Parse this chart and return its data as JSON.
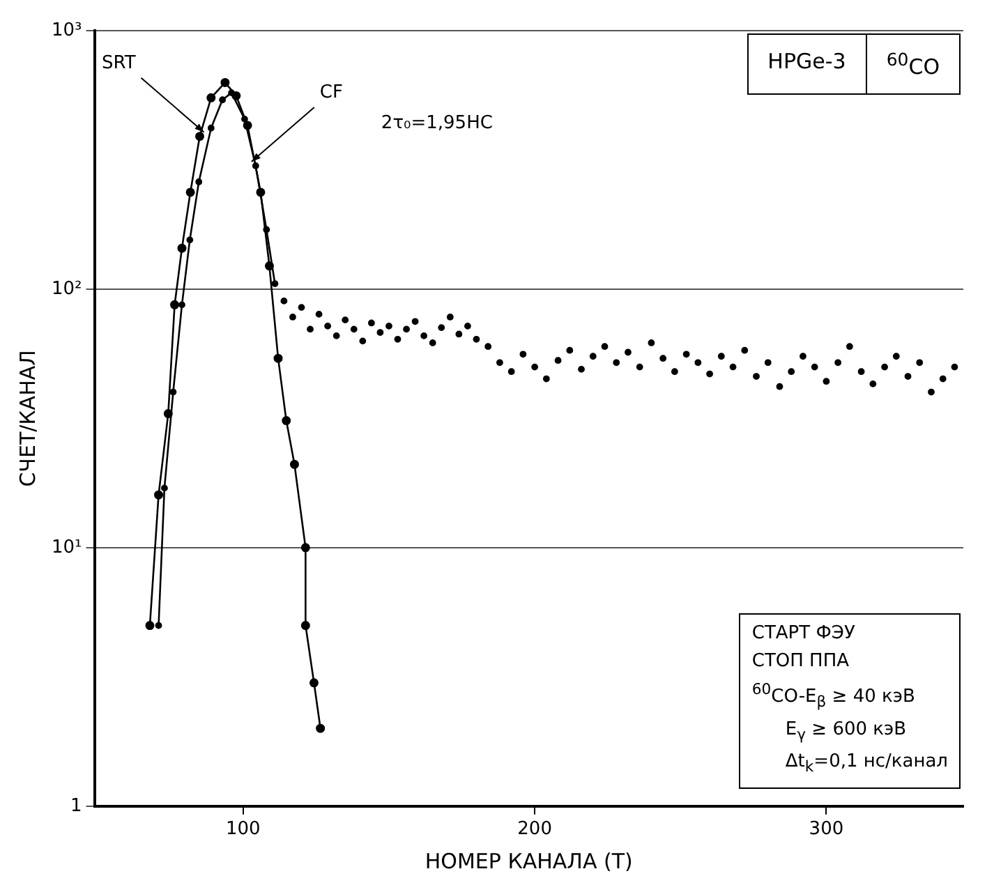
{
  "chart_data": {
    "type": "line",
    "xlabel": "НОМЕР КАНАЛА (Т)",
    "ylabel": "СЧЕТ/КАНАЛ",
    "xlim": [
      49,
      347
    ],
    "xticks": [
      100,
      200,
      300
    ],
    "ylim": [
      1,
      1000
    ],
    "yticks": [
      1,
      {
        "value": 10,
        "label": "10¹"
      },
      {
        "value": 100,
        "label": "10²"
      },
      {
        "value": 1000,
        "label": "10³"
      }
    ],
    "log": "y",
    "grid": "y",
    "marker": "circle",
    "line_style": "solid",
    "series": [
      {
        "name": "SRT",
        "color": "#000000",
        "x": [
          68,
          71,
          74.3,
          76.5,
          79,
          81.9,
          85.1,
          89,
          93.8,
          97.6,
          101.5,
          106,
          109,
          112,
          114.8,
          117.6,
          121.4,
          121.4,
          124.3,
          126.5
        ],
        "values": [
          5,
          16,
          33,
          87,
          144,
          237,
          390,
          550,
          630,
          560,
          430,
          237,
          123,
          54,
          31,
          21,
          10,
          5,
          3,
          2
        ]
      },
      {
        "name": "CF",
        "color": "#000000",
        "x": [
          71,
          73,
          76,
          79,
          81.7,
          84.8,
          89,
          92.9,
          96,
          100.5,
          104.3,
          108,
          110.9
        ],
        "values": [
          5,
          17,
          40,
          87,
          155,
          260,
          420,
          540,
          575,
          455,
          300,
          170,
          105
        ]
      },
      {
        "type": "scatter",
        "color": "#000000",
        "x": [
          114,
          117,
          120,
          123,
          126,
          129,
          132,
          135,
          138,
          141,
          144,
          147,
          150,
          153,
          156,
          159,
          162,
          165,
          168,
          171,
          174,
          177,
          180,
          184,
          188,
          192,
          196,
          200,
          204,
          208,
          212,
          216,
          220,
          224,
          228,
          232,
          236,
          240,
          244,
          248,
          252,
          256,
          260,
          264,
          268,
          272,
          276,
          280,
          284,
          288,
          292,
          296,
          300,
          304,
          308,
          312,
          316,
          320,
          324,
          328,
          332,
          336,
          340,
          344
        ],
        "values": [
          90,
          78,
          85,
          70,
          80,
          72,
          66,
          76,
          70,
          63,
          74,
          68,
          72,
          64,
          70,
          75,
          66,
          62,
          71,
          78,
          67,
          72,
          64,
          60,
          52,
          48,
          56,
          50,
          45,
          53,
          58,
          49,
          55,
          60,
          52,
          57,
          50,
          62,
          54,
          48,
          56,
          52,
          47,
          55,
          50,
          58,
          46,
          52,
          42,
          48,
          55,
          50,
          44,
          52,
          60,
          48,
          43,
          50,
          55,
          46,
          52,
          40,
          45,
          50
        ]
      }
    ],
    "annotations": [
      "2τ₀=1,95НС",
      "HPGe-3",
      "$^{60}$CO",
      "СТАРТ ФЭУ",
      "СТОП ППА",
      "$^{60}$CO-E$_{β}$ ≥ 40 кэВ",
      "E$_{γ}$ ≥ 600 кэВ",
      "Δt$_{k}$=0,1 нс/канал"
    ]
  }
}
